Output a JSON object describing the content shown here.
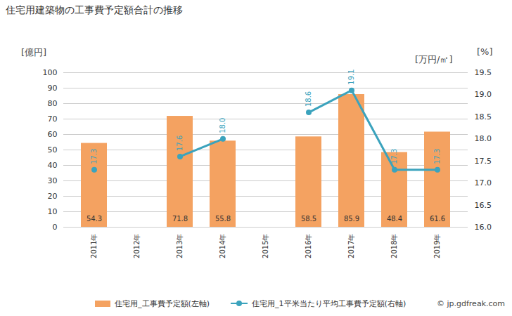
{
  "chart_data": {
    "type": "bar",
    "title": "住宅用建築物の工事費予定額合計の推移",
    "categories": [
      "2011年",
      "2012年",
      "2013年",
      "2014年",
      "2015年",
      "2016年",
      "2017年",
      "2018年",
      "2019年"
    ],
    "series": [
      {
        "name": "住宅用_工事費予定額(左軸)",
        "type": "bar",
        "color": "#f4a261",
        "values": [
          54.3,
          null,
          71.8,
          55.8,
          null,
          58.5,
          85.9,
          48.4,
          61.6
        ]
      },
      {
        "name": "住宅用_1平米当たり平均工事費予定額(右軸)",
        "type": "line",
        "axis": "y2",
        "color": "#3ba3bd",
        "marker": "circle",
        "values": [
          17.3,
          null,
          17.6,
          18.0,
          null,
          18.6,
          19.1,
          17.3,
          17.3
        ],
        "value_labels": [
          "17.3",
          null,
          "17.6",
          "18.0",
          null,
          "18.6",
          "19.1",
          "17.3",
          "17.3"
        ]
      }
    ],
    "ylabel": "[億円]",
    "y2label": "[万円/㎡]",
    "ylim": [
      0,
      100
    ],
    "yticks": [
      0,
      10,
      20,
      30,
      40,
      50,
      60,
      70,
      80,
      90,
      100
    ],
    "y2lim": [
      16,
      19.5
    ],
    "y2ticks": [
      {
        "value": 16,
        "label": "16.0"
      },
      {
        "value": 16.5,
        "label": "16.5"
      },
      {
        "value": 17,
        "label": "17.0"
      },
      {
        "value": 17.5,
        "label": "17.5"
      },
      {
        "value": 18,
        "label": "18.0"
      },
      {
        "value": 18.5,
        "label": "18.5"
      },
      {
        "value": 19,
        "label": "19.0"
      },
      {
        "value": 19.5,
        "label": "19.5"
      }
    ],
    "grid": true,
    "data_labels": true,
    "legend": "bottom",
    "annotations": [
      "[%]",
      "© jp.gdfreak.com"
    ]
  }
}
